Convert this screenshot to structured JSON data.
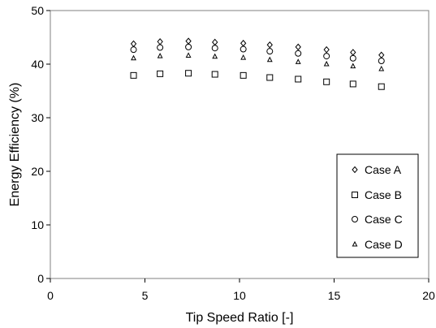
{
  "chart_data": {
    "type": "scatter",
    "title": "",
    "xlabel": "Tip Speed Ratio [-]",
    "ylabel": "Energy Efficiency (%)",
    "xlim": [
      0,
      20
    ],
    "ylim": [
      0,
      50
    ],
    "xticks": [
      0,
      5,
      10,
      15,
      20
    ],
    "yticks": [
      0,
      10,
      20,
      30,
      40,
      50
    ],
    "grid": false,
    "legend_position": "bottom-right",
    "series": [
      {
        "name": "Case A",
        "marker": "diamond",
        "x": [
          4.4,
          5.8,
          7.3,
          8.7,
          10.2,
          11.6,
          13.1,
          14.6,
          16.0,
          17.5
        ],
        "y": [
          43.8,
          44.2,
          44.3,
          44.1,
          43.9,
          43.6,
          43.2,
          42.7,
          42.2,
          41.7
        ]
      },
      {
        "name": "Case B",
        "marker": "square",
        "x": [
          4.4,
          5.8,
          7.3,
          8.7,
          10.2,
          11.6,
          13.1,
          14.6,
          16.0,
          17.5
        ],
        "y": [
          37.9,
          38.2,
          38.3,
          38.1,
          37.9,
          37.5,
          37.2,
          36.7,
          36.3,
          35.8
        ]
      },
      {
        "name": "Case C",
        "marker": "circle",
        "x": [
          4.4,
          5.8,
          7.3,
          8.7,
          10.2,
          11.6,
          13.1,
          14.6,
          16.0,
          17.5
        ],
        "y": [
          42.7,
          43.1,
          43.2,
          43.0,
          42.8,
          42.4,
          42.0,
          41.5,
          41.1,
          40.6
        ]
      },
      {
        "name": "Case D",
        "marker": "triangle",
        "x": [
          4.4,
          5.8,
          7.3,
          8.7,
          10.2,
          11.6,
          13.1,
          14.6,
          16.0,
          17.5
        ],
        "y": [
          41.1,
          41.5,
          41.6,
          41.4,
          41.2,
          40.8,
          40.4,
          40.0,
          39.6,
          39.1
        ]
      }
    ]
  }
}
